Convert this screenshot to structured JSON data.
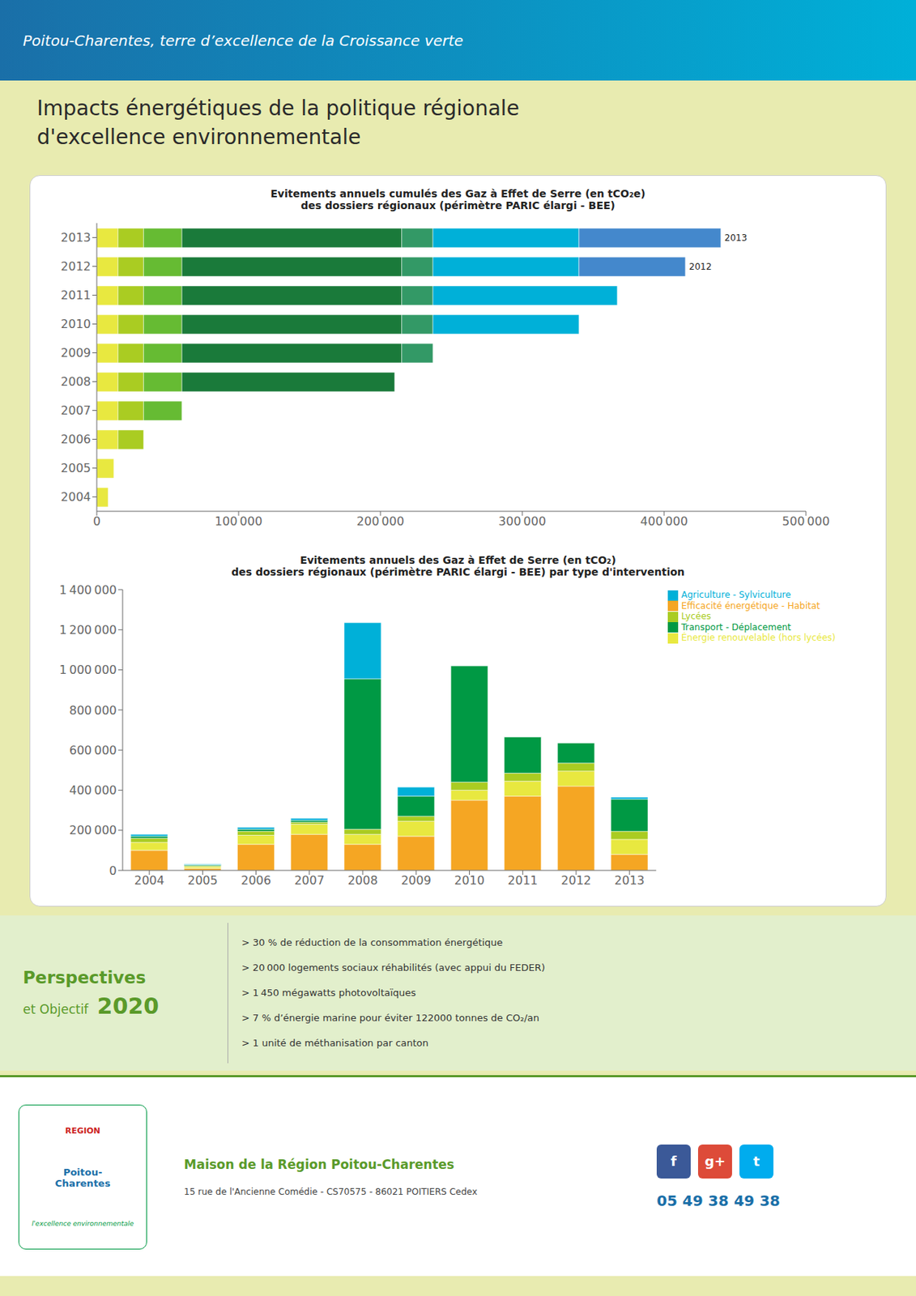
{
  "title": "Impacts énergétiques de la politique régionale\nd'excellence environnementale",
  "annotations": [
    "Poitou-Charentes, terre d’excellence de la Croissance verte",
    "Perspectives",
    "et Objectif",
    "2020",
    "> 30 % de réduction de la consommation énergétique",
    "> 20 000 logements sociaux réhabilités (avec appui du FEDER)",
    "> 1 450 mégawatts photovoltaïques",
    "> 7 % d’énergie marine pour éviter 122000 tonnes de CO₂/an",
    "> 1 unité de méthanisation par canton",
    "REGION",
    "Poitou-\nCharentes",
    "l'excellence environnementale",
    "Maison de la Région Poitou-Charentes",
    "15 rue de l'Ancienne Comédie - CS70575 - 86021 POITIERS Cedex",
    "f",
    "g+",
    "t",
    "05 49 38 49 38"
  ],
  "chart_data": [
    {
      "type": "bar",
      "orientation": "horizontal",
      "stacked": true,
      "grid": false,
      "title": "Evitements annuels cumulés des Gaz à Effet de Serre (en tCO₂e)\ndes dossiers régionaux (périmètre PARIC élargi - BEE)",
      "categories": [
        "2004",
        "2005",
        "2006",
        "2007",
        "2008",
        "2009",
        "2010",
        "2011",
        "2012",
        "2013"
      ],
      "series": [
        {
          "color": "#e8e840",
          "values": [
            8000,
            12000,
            15000,
            15000,
            15000,
            15000,
            15000,
            15000,
            15000,
            15000
          ]
        },
        {
          "color": "#aacc22",
          "values": [
            0,
            0,
            18000,
            18000,
            18000,
            18000,
            18000,
            18000,
            18000,
            18000
          ]
        },
        {
          "color": "#66bb33",
          "values": [
            0,
            0,
            0,
            27000,
            27000,
            27000,
            27000,
            27000,
            27000,
            27000
          ]
        },
        {
          "color": "#1a7a3a",
          "values": [
            0,
            0,
            0,
            0,
            150000,
            155000,
            155000,
            155000,
            155000,
            155000
          ]
        },
        {
          "color": "#339966",
          "values": [
            0,
            0,
            0,
            0,
            0,
            22000,
            22000,
            22000,
            22000,
            22000
          ]
        },
        {
          "color": "#00b0d8",
          "values": [
            0,
            0,
            0,
            0,
            0,
            0,
            103000,
            130000,
            103000,
            103000
          ]
        },
        {
          "color": "#4488cc",
          "values": [
            0,
            0,
            0,
            0,
            0,
            0,
            0,
            0,
            75000,
            100000
          ]
        }
      ],
      "xlim": [
        0,
        500000
      ],
      "xticks": [
        0,
        {
          "value": 100000,
          "label": "100 000"
        },
        {
          "value": 200000,
          "label": "200 000"
        },
        {
          "value": 300000,
          "label": "300 000"
        },
        {
          "value": 400000,
          "label": "400 000"
        },
        {
          "value": 500000,
          "label": "500 000"
        }
      ]
    },
    {
      "type": "bar",
      "stacked": true,
      "grid": false,
      "legend": "upper right",
      "title": "Evitements annuels des Gaz à Effet de Serre  (en tCO₂)\ndes dossiers régionaux (périmètre PARIC élargi - BEE) par type d'intervention",
      "categories": [
        "2004",
        "2005",
        "2006",
        "2007",
        "2008",
        "2009",
        "2010",
        "2011",
        "2012",
        "2013"
      ],
      "series": [
        {
          "name": "Efficacité énergétique - Habitat",
          "color": "#f5a623",
          "values": [
            100000,
            10000,
            130000,
            180000,
            130000,
            170000,
            350000,
            370000,
            420000,
            80000
          ]
        },
        {
          "name": "Énergie renouvelable (hors lycées)",
          "color": "#e8e840",
          "values": [
            40000,
            8000,
            45000,
            50000,
            50000,
            75000,
            50000,
            75000,
            75000,
            75000
          ]
        },
        {
          "name": "Lycées",
          "color": "#aacc22",
          "values": [
            20000,
            5000,
            20000,
            10000,
            25000,
            25000,
            40000,
            40000,
            40000,
            40000
          ]
        },
        {
          "name": "Transport - Déplacement",
          "color": "#009944",
          "values": [
            10000,
            5000,
            10000,
            10000,
            750000,
            100000,
            580000,
            180000,
            100000,
            160000
          ]
        },
        {
          "name": "Agriculture - Sylviculture",
          "color": "#00b0d8",
          "values": [
            10000,
            3000,
            10000,
            10000,
            280000,
            45000,
            0,
            0,
            0,
            10000
          ]
        }
      ],
      "ylim": [
        0,
        1400000
      ],
      "yticks": [
        0,
        {
          "value": 200000,
          "label": "200 000"
        },
        {
          "value": 400000,
          "label": "400 000"
        },
        {
          "value": 600000,
          "label": "600 000"
        },
        {
          "value": 800000,
          "label": "800 000"
        },
        {
          "value": 1000000,
          "label": "1 000 000"
        },
        {
          "value": 1200000,
          "label": "1 200 000"
        },
        {
          "value": 1400000,
          "label": "1 400 000"
        }
      ]
    }
  ]
}
